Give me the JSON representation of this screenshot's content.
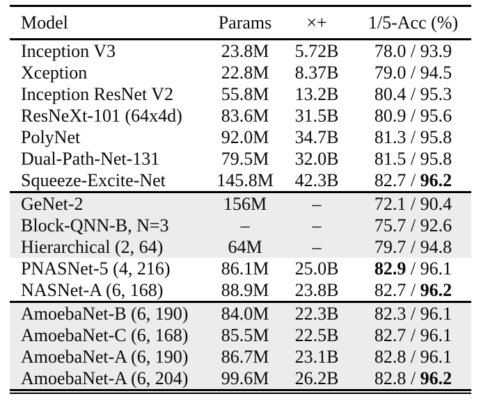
{
  "colors": {
    "row_shade": "#ececec",
    "rule": "#000000",
    "text": "#0a0a0a",
    "background": "#ffffff"
  },
  "table": {
    "columns": [
      "Model",
      "Params",
      "×+",
      "1/5-Acc (%)"
    ],
    "acc_separator": "/",
    "missing_value": "–",
    "groups": [
      {
        "rows": [
          {
            "model": "Inception V3",
            "params": "23.8M",
            "flops": "5.72B",
            "acc_top1": "78.0",
            "acc_top5": "93.9",
            "top1_bold": false,
            "top5_bold": false,
            "shaded": false
          },
          {
            "model": "Xception",
            "params": "22.8M",
            "flops": "8.37B",
            "acc_top1": "79.0",
            "acc_top5": "94.5",
            "top1_bold": false,
            "top5_bold": false,
            "shaded": false
          },
          {
            "model": "Inception ResNet V2",
            "params": "55.8M",
            "flops": "13.2B",
            "acc_top1": "80.4",
            "acc_top5": "95.3",
            "top1_bold": false,
            "top5_bold": false,
            "shaded": false
          },
          {
            "model": "ResNeXt-101 (64x4d)",
            "params": "83.6M",
            "flops": "31.5B",
            "acc_top1": "80.9",
            "acc_top5": "95.6",
            "top1_bold": false,
            "top5_bold": false,
            "shaded": false
          },
          {
            "model": "PolyNet",
            "params": "92.0M",
            "flops": "34.7B",
            "acc_top1": "81.3",
            "acc_top5": "95.8",
            "top1_bold": false,
            "top5_bold": false,
            "shaded": false
          },
          {
            "model": "Dual-Path-Net-131",
            "params": "79.5M",
            "flops": "32.0B",
            "acc_top1": "81.5",
            "acc_top5": "95.8",
            "top1_bold": false,
            "top5_bold": false,
            "shaded": false
          },
          {
            "model": "Squeeze-Excite-Net",
            "params": "145.8M",
            "flops": "42.3B",
            "acc_top1": "82.7",
            "acc_top5": "96.2",
            "top1_bold": false,
            "top5_bold": true,
            "shaded": false
          }
        ]
      },
      {
        "rows": [
          {
            "model": "GeNet-2",
            "params": "156M",
            "flops": "–",
            "acc_top1": "72.1",
            "acc_top5": "90.4",
            "top1_bold": false,
            "top5_bold": false,
            "shaded": true
          },
          {
            "model": "Block-QNN-B, N=3",
            "params": "–",
            "flops": "–",
            "acc_top1": "75.7",
            "acc_top5": "92.6",
            "top1_bold": false,
            "top5_bold": false,
            "shaded": true
          },
          {
            "model": "Hierarchical (2, 64)",
            "params": "64M",
            "flops": "–",
            "acc_top1": "79.7",
            "acc_top5": "94.8",
            "top1_bold": false,
            "top5_bold": false,
            "shaded": true
          },
          {
            "model": "PNASNet-5 (4, 216)",
            "params": "86.1M",
            "flops": "25.0B",
            "acc_top1": "82.9",
            "acc_top5": "96.1",
            "top1_bold": true,
            "top5_bold": false,
            "shaded": false
          },
          {
            "model": "NASNet-A (6, 168)",
            "params": "88.9M",
            "flops": "23.8B",
            "acc_top1": "82.7",
            "acc_top5": "96.2",
            "top1_bold": false,
            "top5_bold": true,
            "shaded": false
          }
        ]
      },
      {
        "rows": [
          {
            "model": "AmoebaNet-B (6, 190)",
            "params": "84.0M",
            "flops": "22.3B",
            "acc_top1": "82.3",
            "acc_top5": "96.1",
            "top1_bold": false,
            "top5_bold": false,
            "shaded": true
          },
          {
            "model": "AmoebaNet-C (6, 168)",
            "params": "85.5M",
            "flops": "22.5B",
            "acc_top1": "82.7",
            "acc_top5": "96.1",
            "top1_bold": false,
            "top5_bold": false,
            "shaded": true
          },
          {
            "model": "AmoebaNet-A (6, 190)",
            "params": "86.7M",
            "flops": "23.1B",
            "acc_top1": "82.8",
            "acc_top5": "96.1",
            "top1_bold": false,
            "top5_bold": false,
            "shaded": true
          },
          {
            "model": "AmoebaNet-A (6, 204)",
            "params": "99.6M",
            "flops": "26.2B",
            "acc_top1": "82.8",
            "acc_top5": "96.2",
            "top1_bold": false,
            "top5_bold": true,
            "shaded": true
          }
        ]
      }
    ]
  }
}
